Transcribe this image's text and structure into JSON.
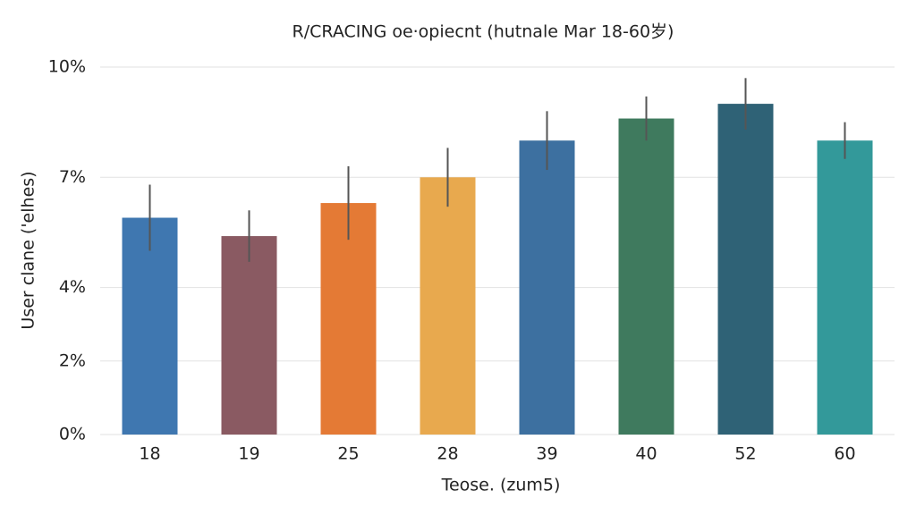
{
  "chart_data": {
    "type": "bar",
    "title": "R/CRACING oe·opiecnt (hutnale Mar 18-60岁)",
    "x_label": "Teose. (zum5)",
    "y_label": "User clane ('elhes)",
    "categories": [
      "18",
      "19",
      "25",
      "28",
      "39",
      "40",
      "52",
      "60"
    ],
    "values": [
      5.9,
      5.4,
      6.3,
      7.0,
      8.0,
      8.6,
      9.0,
      8.0
    ],
    "errors": [
      0.9,
      0.7,
      1.0,
      0.8,
      0.8,
      0.6,
      0.7,
      0.5
    ],
    "colors": [
      "#3f77b0",
      "#8a5a62",
      "#e47a35",
      "#e8a94e",
      "#3d70a0",
      "#3f7a5e",
      "#2f6276",
      "#33999a"
    ],
    "ylim": [
      0,
      10
    ],
    "yticks": [
      {
        "value": 0,
        "label": "0%"
      },
      {
        "value": 2,
        "label": "2%"
      },
      {
        "value": 4,
        "label": "4%"
      },
      {
        "value": 7,
        "label": "7%"
      },
      {
        "value": 10,
        "label": "10%"
      }
    ],
    "grid": true
  }
}
